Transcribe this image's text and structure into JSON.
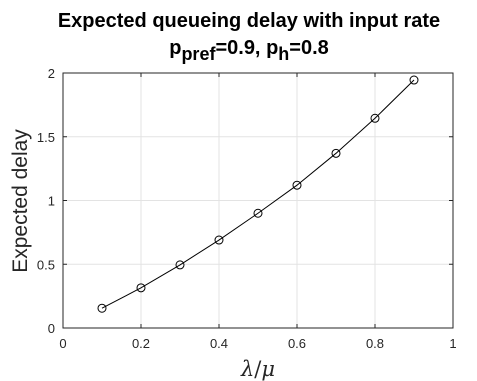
{
  "chart_data": {
    "type": "line",
    "title": {
      "line1": "Expected queueing delay with input rate",
      "line2": {
        "p_pref_base": "p",
        "p_pref_sub": "pref",
        "p_pref_value": "=0.9, ",
        "p_h_base": "p",
        "p_h_sub": "h",
        "p_h_value": "=0.8"
      }
    },
    "xlabel": {
      "lambda": "λ",
      "slash": "/",
      "mu": "μ"
    },
    "ylabel": "Expected delay",
    "xlim": [
      0,
      1
    ],
    "ylim": [
      0,
      2
    ],
    "xticks": [
      0,
      0.2,
      0.4,
      0.6,
      0.8,
      1
    ],
    "xtick_labels": [
      "0",
      "0.2",
      "0.4",
      "0.6",
      "0.8",
      "1"
    ],
    "yticks": [
      0,
      0.5,
      1,
      1.5,
      2
    ],
    "ytick_labels": [
      "0",
      "0.5",
      "1",
      "1.5",
      "2"
    ],
    "grid": true,
    "series": [
      {
        "marker": "circle",
        "color": "#000000",
        "x": [
          0.1,
          0.2,
          0.3,
          0.4,
          0.5,
          0.6,
          0.7,
          0.8,
          0.9
        ],
        "y": [
          0.155,
          0.315,
          0.495,
          0.69,
          0.9,
          1.12,
          1.37,
          1.645,
          1.945
        ]
      }
    ]
  }
}
